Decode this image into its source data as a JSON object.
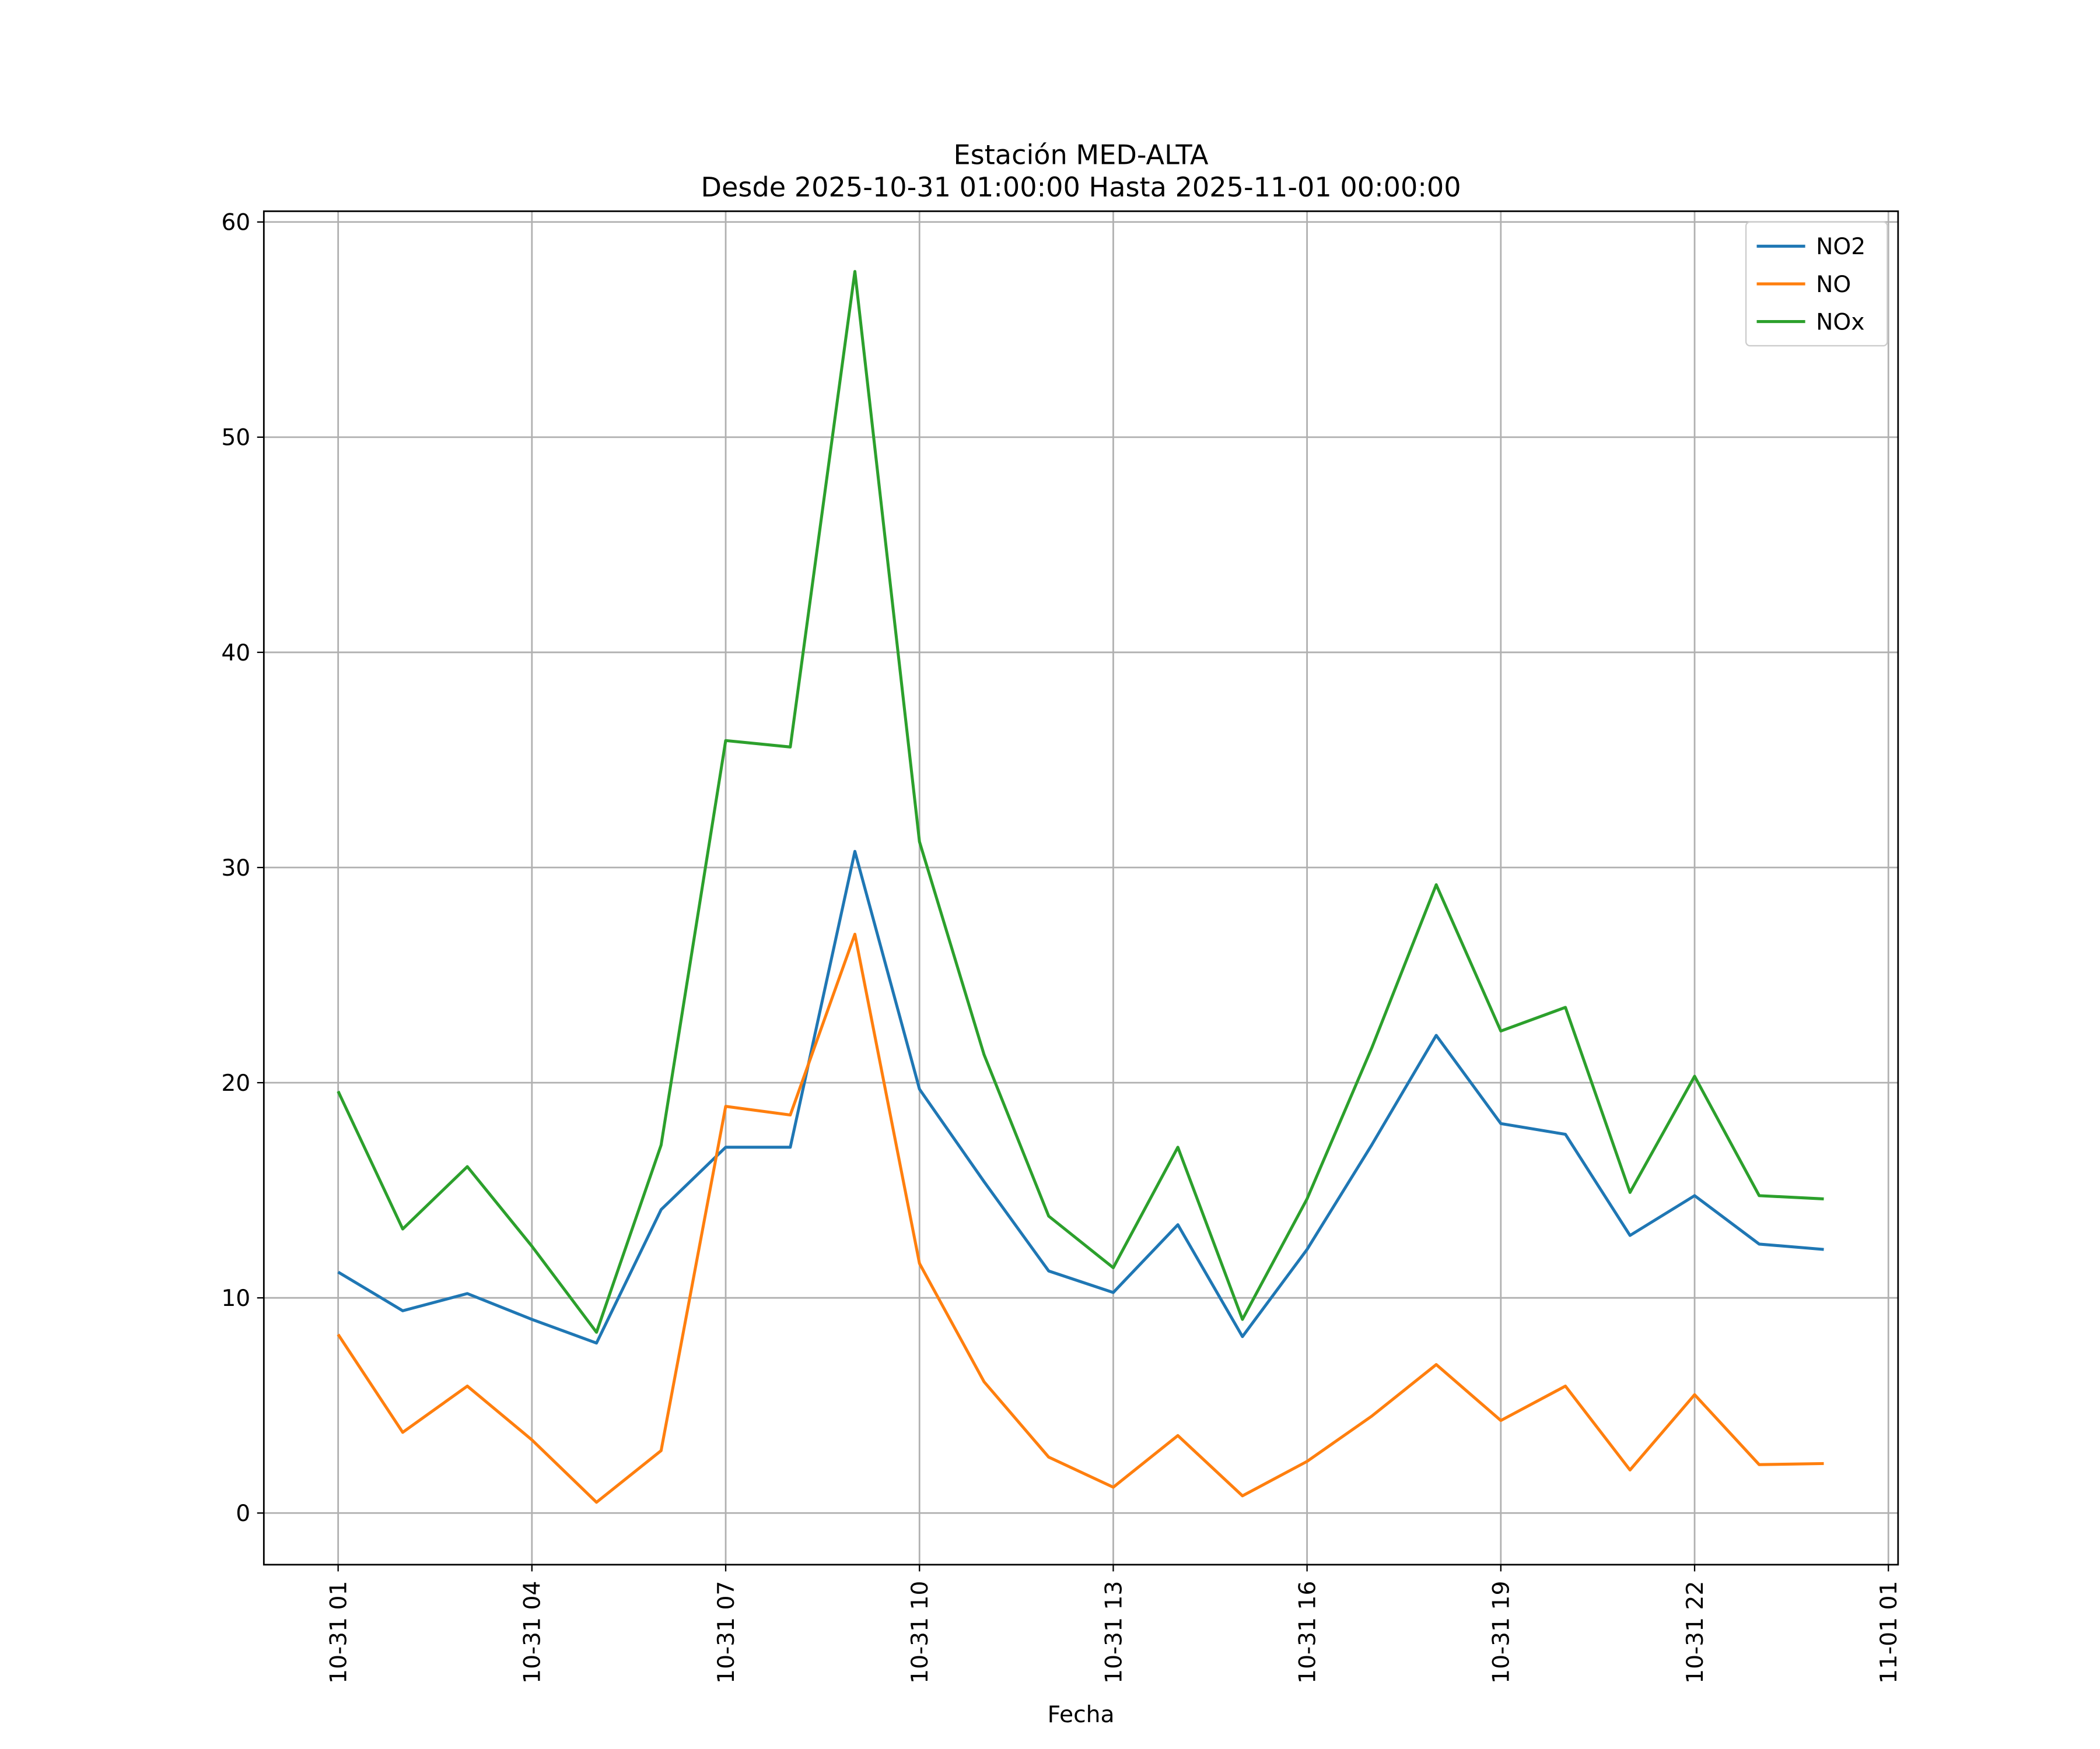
{
  "chart_data": {
    "type": "line",
    "title": "Estación MED-ALTA",
    "subtitle": "Desde 2025-10-31 01:00:00 Hasta 2025-11-01 00:00:00",
    "x_label": "Fecha",
    "x": [
      "10-31 01",
      "10-31 02",
      "10-31 03",
      "10-31 04",
      "10-31 05",
      "10-31 06",
      "10-31 07",
      "10-31 08",
      "10-31 09",
      "10-31 10",
      "10-31 11",
      "10-31 12",
      "10-31 13",
      "10-31 14",
      "10-31 15",
      "10-31 16",
      "10-31 17",
      "10-31 18",
      "10-31 19",
      "10-31 20",
      "10-31 21",
      "10-31 22",
      "10-31 23",
      "11-01 00"
    ],
    "series": [
      {
        "name": "NO2",
        "color": "#1f77b4",
        "values": [
          11.2,
          9.4,
          10.2,
          9.0,
          7.9,
          14.1,
          17.0,
          17.0,
          30.75,
          19.7,
          15.4,
          11.25,
          10.25,
          13.4,
          8.2,
          12.25,
          17.1,
          22.2,
          18.1,
          17.6,
          12.9,
          14.75,
          12.5,
          12.25
        ]
      },
      {
        "name": "NO",
        "color": "#ff7f0e",
        "values": [
          8.3,
          3.75,
          5.9,
          3.4,
          0.5,
          2.9,
          18.9,
          18.5,
          26.9,
          11.6,
          6.1,
          2.6,
          1.2,
          3.6,
          0.8,
          2.4,
          4.5,
          6.9,
          4.3,
          5.9,
          2.0,
          5.5,
          2.25,
          2.3
        ]
      },
      {
        "name": "NOx",
        "color": "#2ca02c",
        "values": [
          19.6,
          13.2,
          16.1,
          12.4,
          8.4,
          17.1,
          35.9,
          35.6,
          57.7,
          31.2,
          21.3,
          13.8,
          11.4,
          17.0,
          9.0,
          14.6,
          21.6,
          29.2,
          22.4,
          23.5,
          14.9,
          20.3,
          14.75,
          14.6
        ]
      }
    ],
    "xticks": [
      "10-31 01",
      "10-31 04",
      "10-31 07",
      "10-31 10",
      "10-31 13",
      "10-31 16",
      "10-31 19",
      "10-31 22",
      "11-01 01"
    ],
    "ylim": [
      -2.4,
      60.5
    ],
    "yticks": [
      0,
      10,
      20,
      30,
      40,
      50,
      60
    ],
    "grid": true,
    "legend": "upper right"
  }
}
